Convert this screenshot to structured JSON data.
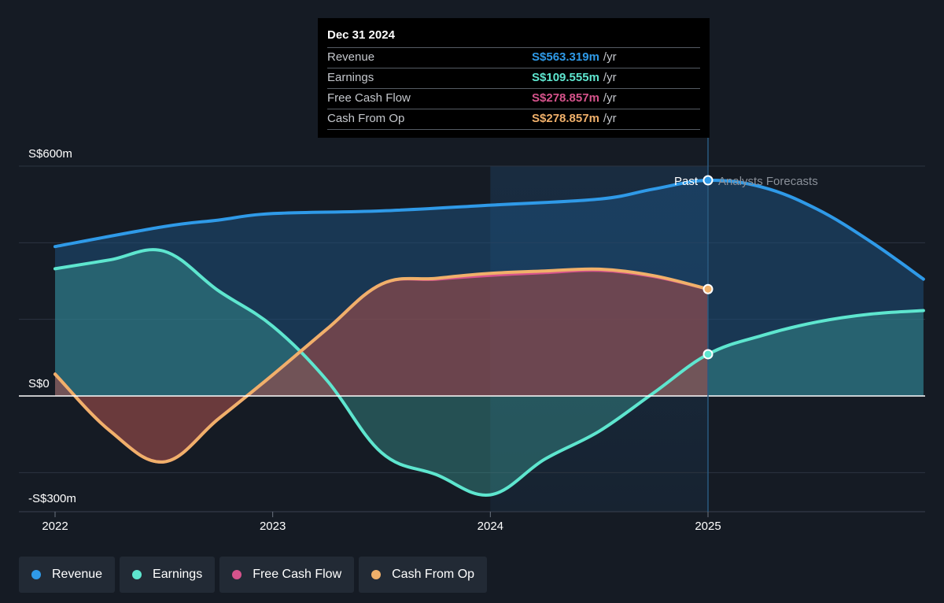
{
  "tooltip": {
    "date": "Dec 31 2024",
    "rows": [
      {
        "label": "Revenue",
        "value": "S$563.319m",
        "unit": "/yr",
        "color": "#2f9ae8"
      },
      {
        "label": "Earnings",
        "value": "S$109.555m",
        "unit": "/yr",
        "color": "#5ee6cf"
      },
      {
        "label": "Free Cash Flow",
        "value": "S$278.857m",
        "unit": "/yr",
        "color": "#d6538c"
      },
      {
        "label": "Cash From Op",
        "value": "S$278.857m",
        "unit": "/yr",
        "color": "#f0b06a"
      }
    ]
  },
  "markers": {
    "past": "Past",
    "forecast": "Analysts Forecasts"
  },
  "legend": [
    {
      "label": "Revenue",
      "color": "#2f9ae8"
    },
    {
      "label": "Earnings",
      "color": "#5ee6cf"
    },
    {
      "label": "Free Cash Flow",
      "color": "#d6538c"
    },
    {
      "label": "Cash From Op",
      "color": "#f0b06a"
    }
  ],
  "chart_data": {
    "type": "area",
    "title": "",
    "xlabel": "",
    "ylabel": "",
    "currency": "S$",
    "unit": "m",
    "ylim": [
      -300,
      600
    ],
    "yticks_labeled": [
      {
        "value": 600,
        "label": "S$600m"
      },
      {
        "value": 0,
        "label": "S$0"
      },
      {
        "value": -300,
        "label": "-S$300m"
      }
    ],
    "ygrid": [
      600,
      400,
      200,
      0,
      -200
    ],
    "xlim": [
      2022,
      2025.99
    ],
    "xticks": [
      {
        "value": 2022,
        "label": "2022"
      },
      {
        "value": 2023,
        "label": "2023"
      },
      {
        "value": 2024,
        "label": "2024"
      },
      {
        "value": 2025,
        "label": "2025"
      }
    ],
    "past_end": 2025,
    "highlight_start": 2024,
    "series": [
      {
        "name": "Revenue",
        "color": "#2f9ae8",
        "points": [
          [
            2022,
            390
          ],
          [
            2022.5,
            442
          ],
          [
            2022.75,
            459
          ],
          [
            2023,
            476
          ],
          [
            2023.5,
            483
          ],
          [
            2024,
            498
          ],
          [
            2024.5,
            514
          ],
          [
            2024.75,
            540
          ],
          [
            2025,
            563
          ],
          [
            2025.25,
            545
          ],
          [
            2025.5,
            488
          ],
          [
            2025.75,
            402
          ],
          [
            2025.99,
            305
          ]
        ]
      },
      {
        "name": "Earnings",
        "color": "#5ee6cf",
        "points": [
          [
            2022,
            332
          ],
          [
            2022.25,
            355
          ],
          [
            2022.5,
            378
          ],
          [
            2022.75,
            275
          ],
          [
            2023,
            182
          ],
          [
            2023.25,
            40
          ],
          [
            2023.5,
            -148
          ],
          [
            2023.75,
            -205
          ],
          [
            2024,
            -258
          ],
          [
            2024.25,
            -165
          ],
          [
            2024.5,
            -92
          ],
          [
            2024.75,
            8
          ],
          [
            2025,
            109
          ],
          [
            2025.25,
            158
          ],
          [
            2025.5,
            193
          ],
          [
            2025.75,
            214
          ],
          [
            2025.99,
            223
          ]
        ]
      },
      {
        "name": "Free Cash Flow",
        "color": "#d6538c",
        "points": [
          [
            2022,
            57
          ],
          [
            2022.25,
            -90
          ],
          [
            2022.5,
            -172
          ],
          [
            2022.75,
            -60
          ],
          [
            2023,
            55
          ],
          [
            2023.25,
            175
          ],
          [
            2023.5,
            292
          ],
          [
            2023.75,
            305
          ],
          [
            2024,
            315
          ],
          [
            2024.25,
            322
          ],
          [
            2024.5,
            328
          ],
          [
            2024.75,
            312
          ],
          [
            2025,
            279
          ]
        ]
      },
      {
        "name": "Cash From Op",
        "color": "#f0b06a",
        "points": [
          [
            2022,
            57
          ],
          [
            2022.25,
            -90
          ],
          [
            2022.5,
            -172
          ],
          [
            2022.75,
            -60
          ],
          [
            2023,
            55
          ],
          [
            2023.25,
            175
          ],
          [
            2023.5,
            292
          ],
          [
            2023.75,
            307
          ],
          [
            2024,
            320
          ],
          [
            2024.25,
            326
          ],
          [
            2024.5,
            331
          ],
          [
            2024.75,
            314
          ],
          [
            2025,
            279
          ]
        ]
      }
    ]
  }
}
